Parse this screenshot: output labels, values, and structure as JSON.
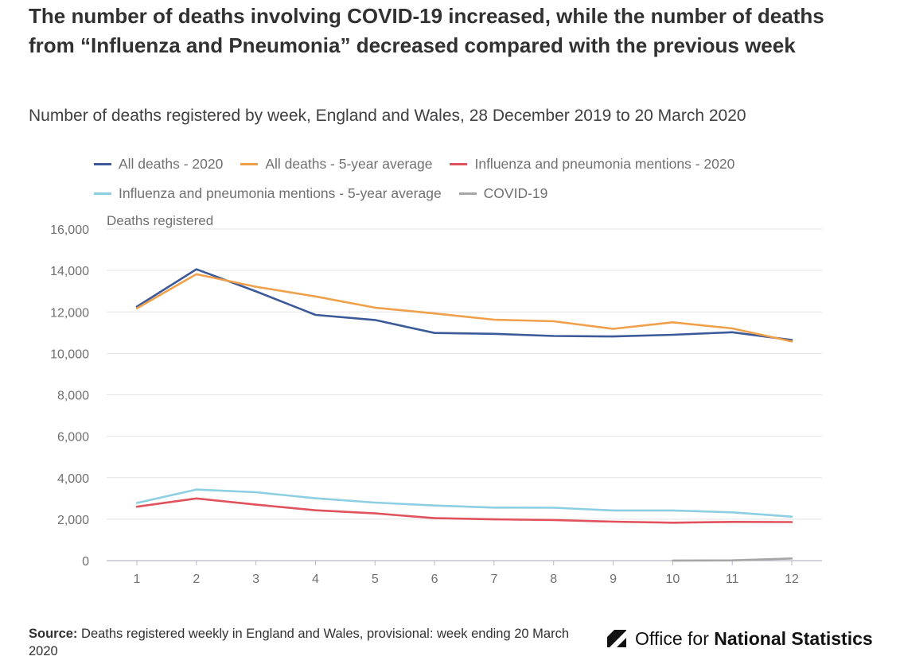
{
  "header": {
    "title": "The number of deaths involving COVID-19 increased, while the number of deaths from “Influenza and Pneumonia” decreased compared with the previous week",
    "subtitle": "Number of deaths registered by week, England and Wales, 28 December 2019 to 20 March 2020"
  },
  "chart_data": {
    "type": "line",
    "ylabel": "Deaths registered",
    "xlabel": "",
    "ylim": [
      0,
      16000
    ],
    "yticks": [
      0,
      2000,
      4000,
      6000,
      8000,
      10000,
      12000,
      14000,
      16000
    ],
    "ytick_labels": [
      "0",
      "2,000",
      "4,000",
      "6,000",
      "8,000",
      "10,000",
      "12,000",
      "14,000",
      "16,000"
    ],
    "x": [
      1,
      2,
      3,
      4,
      5,
      6,
      7,
      8,
      9,
      10,
      11,
      12
    ],
    "x_labels": [
      "1",
      "2",
      "3",
      "4",
      "5",
      "6",
      "7",
      "8",
      "9",
      "10",
      "11",
      "12"
    ],
    "grid": "horizontal",
    "legend_position": "top",
    "series": [
      {
        "name": "All deaths - 2020",
        "color": "#3c5a9a",
        "values": [
          12254,
          14058,
          12990,
          11856,
          11612,
          10986,
          10944,
          10841,
          10816,
          10895,
          11019,
          10645
        ]
      },
      {
        "name": "All deaths - 5-year average",
        "color": "#f0a04b",
        "values": [
          12175,
          13822,
          13216,
          12745,
          12206,
          11925,
          11627,
          11548,
          11183,
          11498,
          11205,
          10573
        ]
      },
      {
        "name": "Influenza and pneumonia mentions - 2020",
        "color": "#e0525c",
        "values": [
          2600,
          3000,
          2700,
          2430,
          2280,
          2050,
          1990,
          1960,
          1880,
          1830,
          1870,
          1860
        ]
      },
      {
        "name": "Influenza and pneumonia mentions - 5-year average",
        "color": "#8ccfe2",
        "values": [
          2780,
          3430,
          3300,
          3010,
          2800,
          2660,
          2560,
          2550,
          2420,
          2420,
          2330,
          2120
        ]
      },
      {
        "name": "COVID-19",
        "color": "#a6a6a6",
        "values": [
          null,
          null,
          null,
          null,
          null,
          null,
          null,
          null,
          null,
          5,
          11,
          103
        ]
      }
    ]
  },
  "footer": {
    "source_label": "Source:",
    "source_text": "Deaths registered weekly in England and Wales, provisional: week ending 20 March 2020",
    "logo_text_regular": "Office for ",
    "logo_text_bold": "National Statistics"
  }
}
